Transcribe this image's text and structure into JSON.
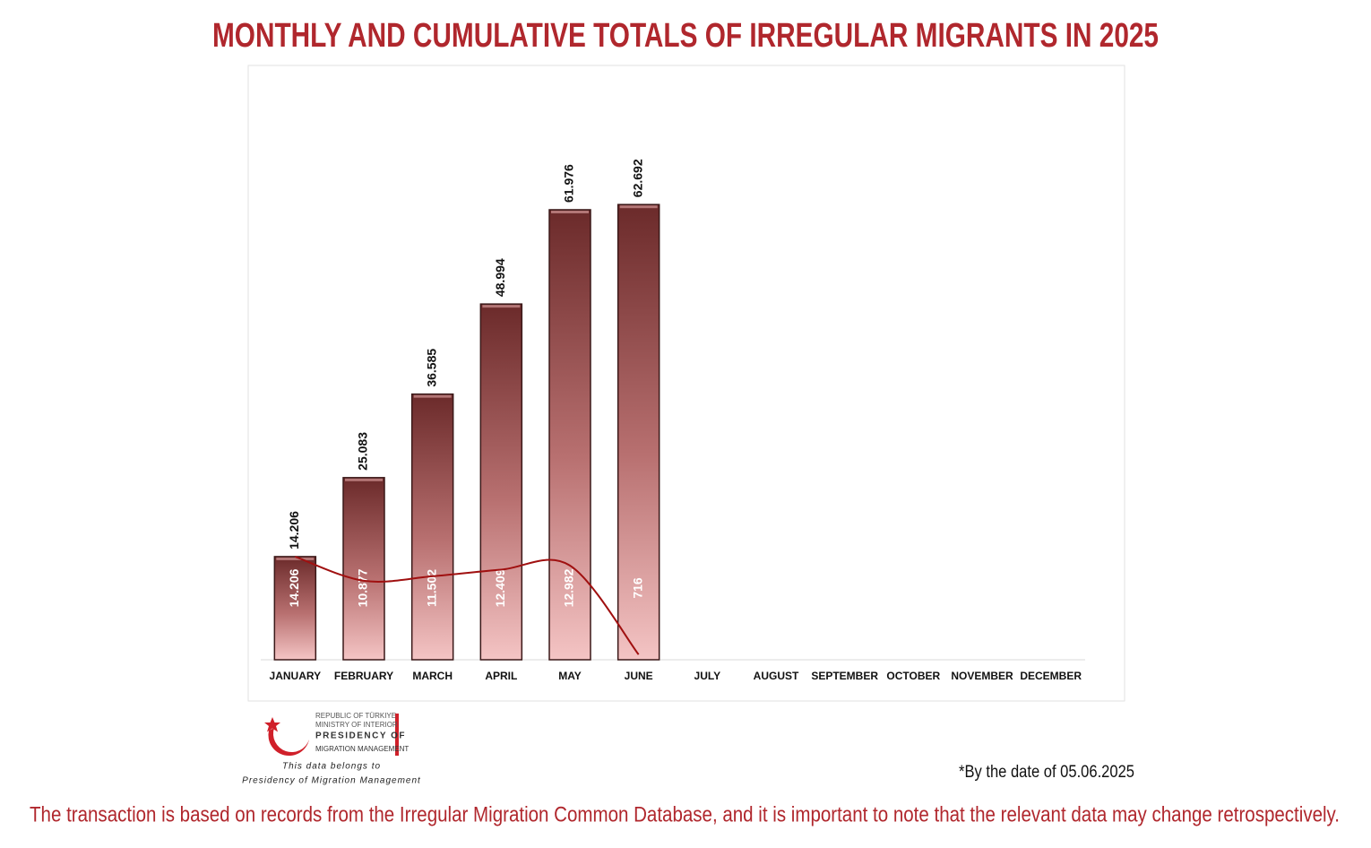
{
  "chart_data": {
    "type": "bar",
    "title": "MONTHLY AND CUMULATIVE TOTALS OF IRREGULAR MIGRANTS IN 2025",
    "categories": [
      "JANUARY",
      "FEBRUARY",
      "MARCH",
      "APRIL",
      "MAY",
      "JUNE",
      "JULY",
      "AUGUST",
      "SEPTEMBER",
      "OCTOBER",
      "NOVEMBER",
      "DECEMBER"
    ],
    "series": [
      {
        "type": "bar",
        "color": "#6b2a2a",
        "values": [
          14206,
          25083,
          36585,
          48994,
          61976,
          62692,
          null,
          null,
          null,
          null,
          null,
          null
        ],
        "value_labels": [
          "14.206",
          "25.083",
          "36.585",
          "48.994",
          "61.976",
          "62.692",
          null,
          null,
          null,
          null,
          null,
          null
        ]
      },
      {
        "type": "line",
        "color": "#a01010",
        "values": [
          14206,
          10877,
          11502,
          12409,
          12982,
          716,
          null,
          null,
          null,
          null,
          null,
          null
        ],
        "value_labels": [
          "14.206",
          "10.877",
          "11.502",
          "12.409",
          "12.982",
          "716",
          null,
          null,
          null,
          null,
          null,
          null
        ]
      }
    ],
    "ylim": [
      0,
      80000
    ],
    "grid": false
  },
  "notes": {
    "date": "*By the date of 05.06.2025",
    "footer": "The transaction is based on records from the Irregular Migration Common Database, and it is important to note that the relevant data may change retrospectively."
  },
  "logo": {
    "line1": "REPUBLIC OF TÜRKIYE",
    "line2": "MINISTRY OF INTERIOR",
    "line3": "PRESIDENCY OF",
    "line4": "MIGRATION MANAGEMENT",
    "caption1": "This data belongs to",
    "caption2": "Presidency of Migration Management"
  }
}
